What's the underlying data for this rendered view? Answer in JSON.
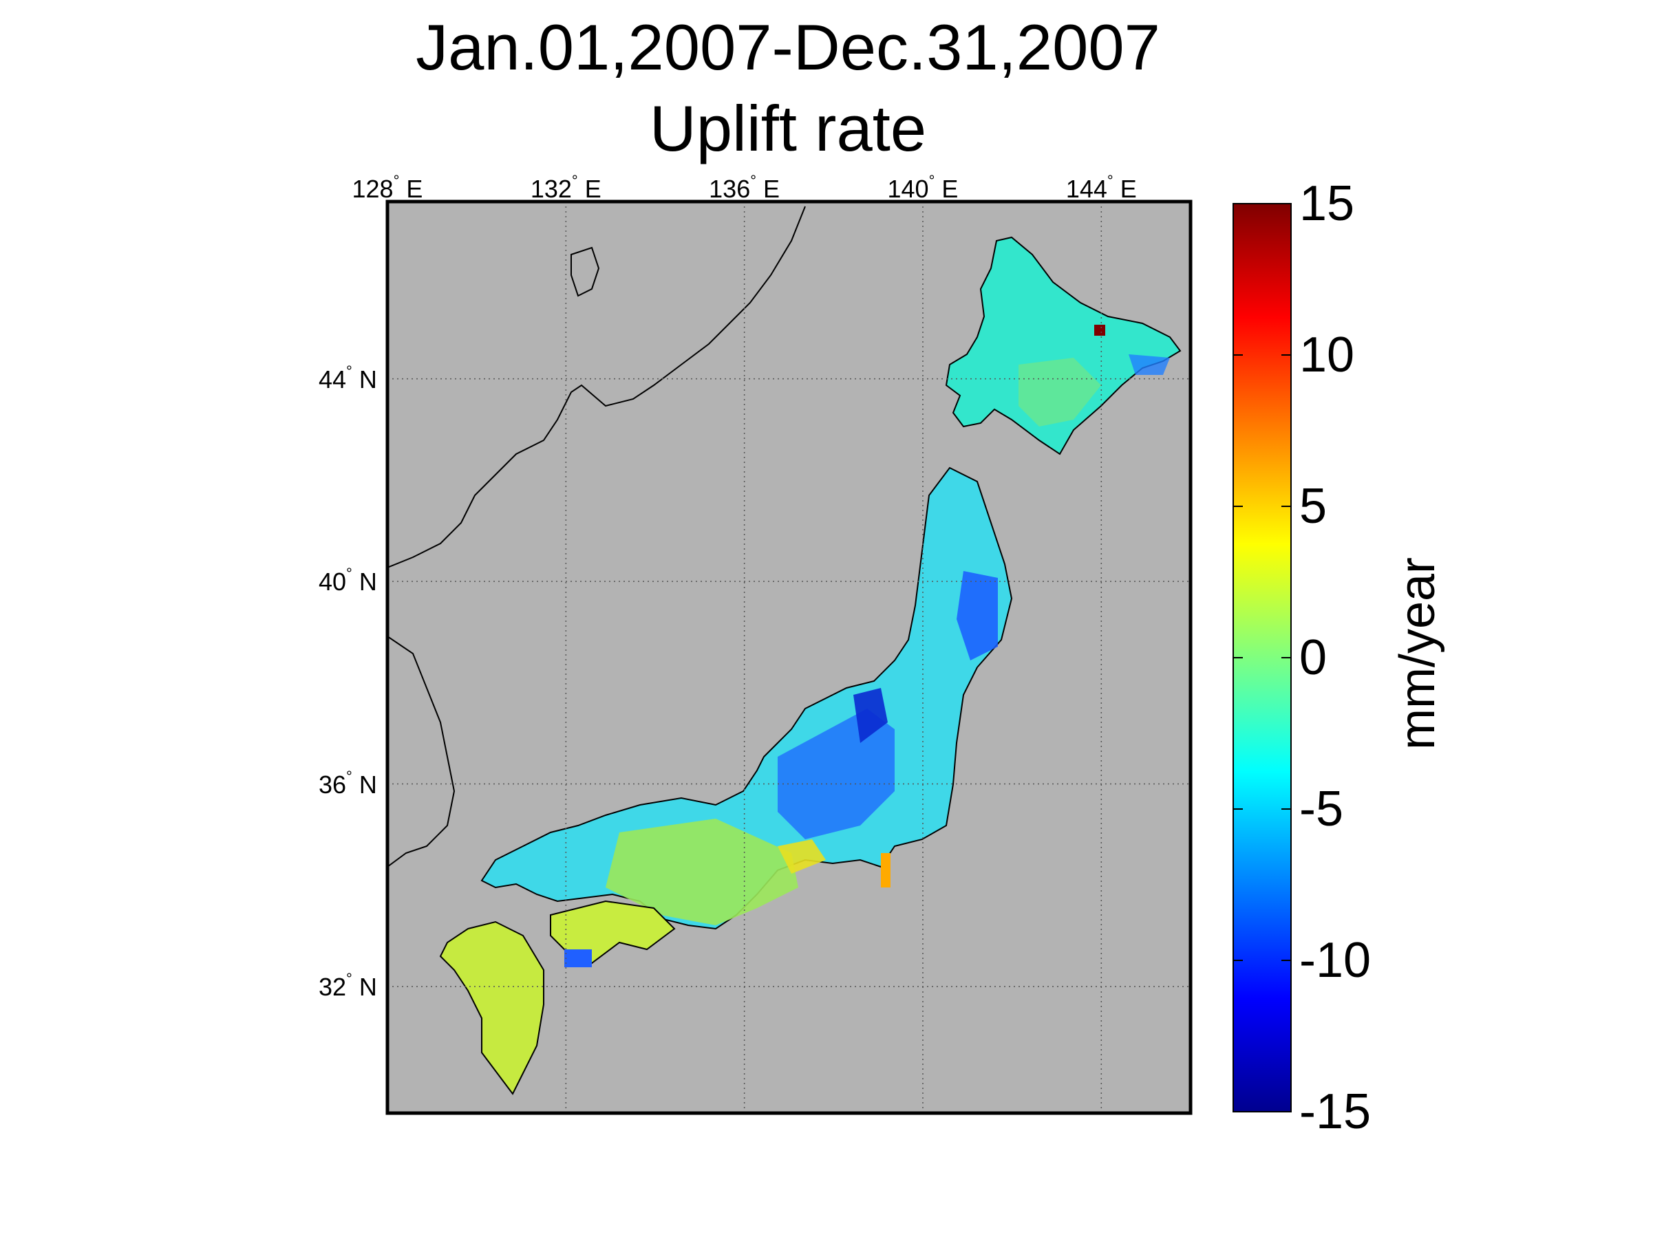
{
  "title_lines": [
    "Jan.01,2007-Dec.31,2007",
    "Uplift rate"
  ],
  "map": {
    "region": "Japan",
    "lon_range": [
      128,
      146
    ],
    "lat_range": [
      29.5,
      47.5
    ],
    "background_color": "#b3b3b3",
    "lon_ticks": [
      {
        "value": 128,
        "deg": "128",
        "dir": "E"
      },
      {
        "value": 132,
        "deg": "132",
        "dir": "E"
      },
      {
        "value": 136,
        "deg": "136",
        "dir": "E"
      },
      {
        "value": 140,
        "deg": "140",
        "dir": "E"
      },
      {
        "value": 144,
        "deg": "144",
        "dir": "E"
      }
    ],
    "lat_ticks": [
      {
        "value": 44,
        "deg": "44",
        "dir": "N"
      },
      {
        "value": 40,
        "deg": "40",
        "dir": "N"
      },
      {
        "value": 36,
        "deg": "36",
        "dir": "N"
      },
      {
        "value": 32,
        "deg": "32",
        "dir": "N"
      }
    ],
    "grid": true,
    "grid_style": "dotted"
  },
  "colorbar": {
    "label": "mm/year",
    "range": [
      -15,
      15
    ],
    "ticks": [
      {
        "value": 15,
        "label": "15"
      },
      {
        "value": 10,
        "label": "10"
      },
      {
        "value": 5,
        "label": "5"
      },
      {
        "value": 0,
        "label": "0"
      },
      {
        "value": -5,
        "label": "-5"
      },
      {
        "value": -10,
        "label": "-10"
      },
      {
        "value": -15,
        "label": "-15"
      }
    ],
    "colormap": "jet"
  }
}
